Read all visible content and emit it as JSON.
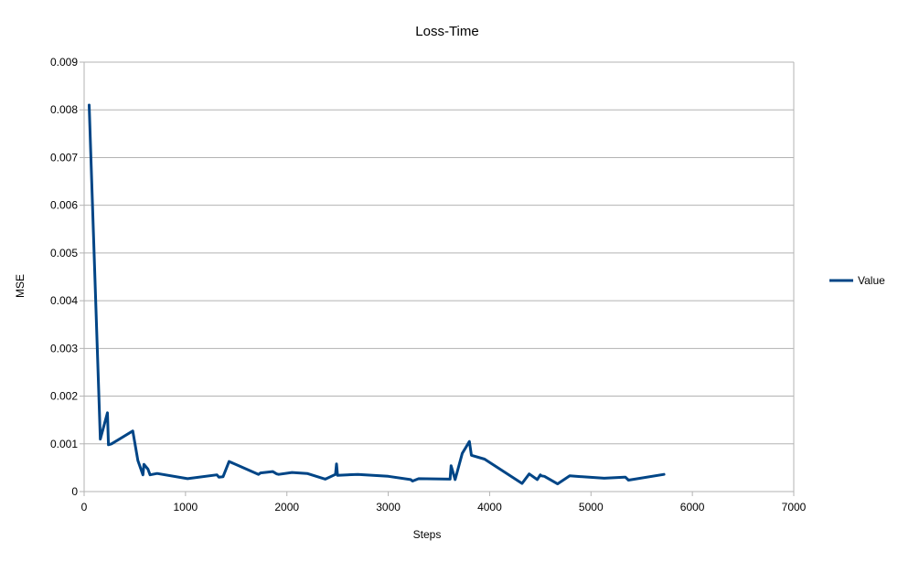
{
  "chart_data": {
    "type": "line",
    "title": "Loss-Time",
    "xlabel": "Steps",
    "ylabel": "MSE",
    "xlim": [
      0,
      7000
    ],
    "ylim": [
      0,
      0.009
    ],
    "xticks": [
      0,
      1000,
      2000,
      3000,
      4000,
      5000,
      6000,
      7000
    ],
    "xtick_labels": [
      "0",
      "1000",
      "2000",
      "3000",
      "4000",
      "5000",
      "6000",
      "7000"
    ],
    "yticks": [
      0,
      0.001,
      0.002,
      0.003,
      0.004,
      0.005,
      0.006,
      0.007,
      0.008,
      0.009
    ],
    "ytick_labels": [
      "0",
      "0.001",
      "0.002",
      "0.003",
      "0.004",
      "0.005",
      "0.006",
      "0.007",
      "0.008",
      "0.009"
    ],
    "grid": "horizontal",
    "legend": "right",
    "color": "#004586",
    "series": [
      {
        "name": "Value",
        "x": [
          50,
          160,
          230,
          240,
          270,
          480,
          530,
          580,
          590,
          630,
          650,
          720,
          1020,
          1310,
          1330,
          1370,
          1430,
          1720,
          1740,
          1860,
          1900,
          1920,
          2050,
          2200,
          2380,
          2480,
          2490,
          2500,
          2700,
          3000,
          3220,
          3240,
          3300,
          3610,
          3620,
          3660,
          3730,
          3800,
          3820,
          3950,
          4320,
          4390,
          4470,
          4500,
          4510,
          4540,
          4670,
          4790,
          5130,
          5330,
          5340,
          5370,
          5720
        ],
        "y": [
          0.0081,
          0.0011,
          0.00165,
          0.00098,
          0.001,
          0.00127,
          0.00065,
          0.00035,
          0.00057,
          0.00047,
          0.00035,
          0.00038,
          0.00027,
          0.00035,
          0.0003,
          0.00031,
          0.00063,
          0.00036,
          0.00039,
          0.00042,
          0.00037,
          0.00036,
          0.0004,
          0.00038,
          0.00026,
          0.00036,
          0.00058,
          0.00034,
          0.00036,
          0.00032,
          0.00025,
          0.00022,
          0.00027,
          0.00026,
          0.00054,
          0.00025,
          0.0008,
          0.00105,
          0.00076,
          0.00068,
          0.00017,
          0.00037,
          0.00025,
          0.00035,
          0.00033,
          0.00032,
          0.00016,
          0.00033,
          0.00028,
          0.0003,
          0.0003,
          0.00024,
          0.00036
        ]
      }
    ]
  }
}
